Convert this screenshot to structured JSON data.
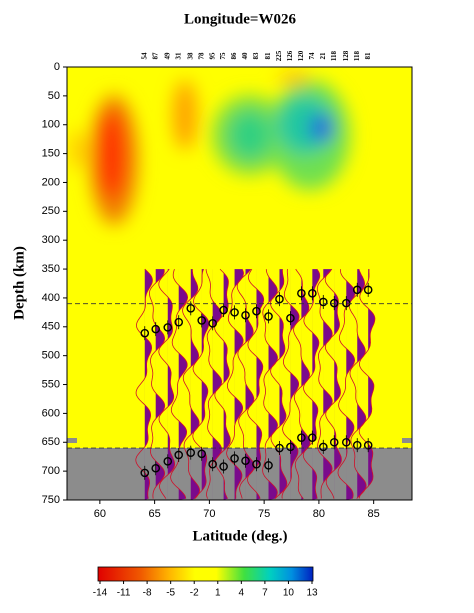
{
  "chart_data": {
    "type": "heatmap",
    "title": "Longitude=W026",
    "xlabel": "Latitude (deg.)",
    "ylabel": "Depth (km)",
    "xlim": [
      57,
      88.5
    ],
    "ylim": [
      0,
      750
    ],
    "xticks": [
      60,
      65,
      70,
      75,
      80,
      85
    ],
    "yticks": [
      0,
      50,
      100,
      150,
      200,
      250,
      300,
      350,
      400,
      450,
      500,
      550,
      600,
      650,
      700,
      750
    ],
    "hlines": [
      410,
      660
    ],
    "x": [
      64.1,
      65.1,
      66.2,
      67.2,
      68.3,
      69.3,
      70.3,
      71.3,
      72.3,
      73.3,
      74.3,
      75.4,
      76.4,
      77.4,
      78.4,
      79.4,
      80.4,
      81.4,
      82.5,
      83.5,
      84.5
    ],
    "trace_counts": [
      54,
      87,
      49,
      31,
      38,
      78,
      95,
      75,
      86,
      40,
      83,
      81,
      225,
      126,
      120,
      74,
      21,
      118,
      128,
      118,
      81
    ],
    "d410": [
      461,
      454,
      451,
      442,
      418,
      439,
      444,
      421,
      425,
      430,
      423,
      432,
      402,
      435,
      392,
      392,
      407,
      409,
      409,
      386,
      386
    ],
    "d660": [
      703,
      695,
      683,
      672,
      668,
      670,
      688,
      692,
      678,
      682,
      688,
      690,
      660,
      658,
      642,
      642,
      658,
      650,
      650,
      655,
      655
    ],
    "colorbar": {
      "lim": [
        -14,
        13
      ],
      "ticks": [
        -14,
        -11,
        -8,
        -5,
        -2,
        1,
        4,
        7,
        10,
        13
      ]
    }
  }
}
